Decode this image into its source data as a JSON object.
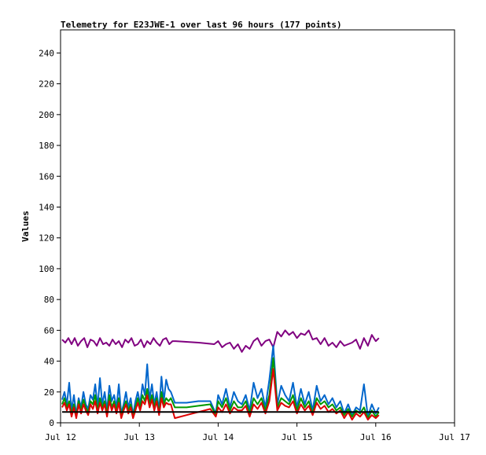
{
  "chart_data": {
    "type": "line",
    "title": "Telemetry for E23JWE-1 over last 96 hours (177 points)",
    "xlabel": "",
    "ylabel": "Values",
    "ylim": [
      0,
      255
    ],
    "yticks": [
      0,
      20,
      40,
      60,
      80,
      100,
      120,
      140,
      160,
      180,
      200,
      220,
      240
    ],
    "xlim": [
      0,
      5
    ],
    "xticks": [
      {
        "x": 0,
        "label": "Jul 12"
      },
      {
        "x": 1,
        "label": "Jul 13"
      },
      {
        "x": 2,
        "label": "Jul 14"
      },
      {
        "x": 3,
        "label": "Jul 15"
      },
      {
        "x": 4,
        "label": "Jul 16"
      },
      {
        "x": 5,
        "label": "Jul 17"
      }
    ],
    "grid": false,
    "legend": "none",
    "x_units": "days since Jul 12 00:00",
    "series": [
      {
        "color": "#800080",
        "x": [
          0.02,
          0.06,
          0.1,
          0.14,
          0.18,
          0.22,
          0.26,
          0.3,
          0.34,
          0.38,
          0.42,
          0.46,
          0.5,
          0.54,
          0.58,
          0.62,
          0.66,
          0.7,
          0.74,
          0.78,
          0.82,
          0.86,
          0.9,
          0.94,
          0.98,
          1.02,
          1.06,
          1.1,
          1.14,
          1.18,
          1.22,
          1.26,
          1.3,
          1.34,
          1.38,
          1.42,
          1.46,
          1.75,
          1.95,
          2.0,
          2.05,
          2.1,
          2.15,
          2.2,
          2.25,
          2.3,
          2.35,
          2.4,
          2.45,
          2.5,
          2.55,
          2.6,
          2.65,
          2.7,
          2.75,
          2.8,
          2.85,
          2.9,
          2.95,
          3.0,
          3.05,
          3.1,
          3.15,
          3.2,
          3.25,
          3.3,
          3.35,
          3.4,
          3.45,
          3.5,
          3.55,
          3.6,
          3.65,
          3.7,
          3.75,
          3.8,
          3.85,
          3.9,
          3.95,
          4.0,
          4.04
        ],
        "values": [
          54,
          52,
          55,
          51,
          55,
          50,
          53,
          55,
          49,
          54,
          53,
          50,
          55,
          51,
          52,
          50,
          54,
          51,
          53,
          49,
          54,
          52,
          55,
          50,
          51,
          54,
          49,
          53,
          51,
          55,
          52,
          50,
          54,
          55,
          51,
          53,
          53,
          52,
          51,
          53,
          49,
          51,
          52,
          48,
          51,
          46,
          50,
          48,
          53,
          55,
          50,
          53,
          54,
          49,
          59,
          56,
          60,
          57,
          59,
          55,
          58,
          57,
          60,
          54,
          55,
          51,
          55,
          50,
          52,
          49,
          53,
          50,
          51,
          52,
          54,
          48,
          55,
          50,
          57,
          53,
          55
        ]
      },
      {
        "color": "#0066cc",
        "x": [
          0.02,
          0.05,
          0.08,
          0.11,
          0.14,
          0.17,
          0.2,
          0.23,
          0.26,
          0.29,
          0.32,
          0.35,
          0.38,
          0.41,
          0.44,
          0.47,
          0.5,
          0.53,
          0.56,
          0.59,
          0.62,
          0.65,
          0.68,
          0.71,
          0.74,
          0.77,
          0.8,
          0.83,
          0.86,
          0.89,
          0.92,
          0.95,
          0.98,
          1.01,
          1.04,
          1.07,
          1.1,
          1.13,
          1.16,
          1.19,
          1.22,
          1.25,
          1.28,
          1.31,
          1.34,
          1.37,
          1.4,
          1.45,
          1.6,
          1.75,
          1.9,
          1.97,
          2.0,
          2.05,
          2.1,
          2.15,
          2.2,
          2.25,
          2.3,
          2.35,
          2.4,
          2.45,
          2.5,
          2.55,
          2.6,
          2.65,
          2.7,
          2.75,
          2.8,
          2.85,
          2.9,
          2.95,
          3.0,
          3.05,
          3.1,
          3.15,
          3.2,
          3.25,
          3.3,
          3.35,
          3.4,
          3.45,
          3.5,
          3.55,
          3.6,
          3.65,
          3.7,
          3.75,
          3.8,
          3.85,
          3.9,
          3.95,
          4.0,
          4.04
        ],
        "values": [
          15,
          20,
          12,
          26,
          8,
          18,
          5,
          16,
          10,
          20,
          12,
          9,
          18,
          15,
          25,
          10,
          29,
          12,
          20,
          8,
          24,
          14,
          18,
          10,
          25,
          6,
          12,
          20,
          10,
          16,
          5,
          14,
          20,
          12,
          25,
          18,
          38,
          15,
          25,
          12,
          20,
          8,
          30,
          14,
          28,
          22,
          20,
          13,
          13,
          14,
          14,
          6,
          18,
          12,
          22,
          10,
          20,
          14,
          12,
          18,
          8,
          26,
          16,
          22,
          10,
          28,
          50,
          12,
          24,
          18,
          14,
          26,
          10,
          22,
          12,
          20,
          8,
          24,
          14,
          18,
          12,
          16,
          10,
          14,
          6,
          12,
          5,
          10,
          8,
          25,
          4,
          12,
          6,
          10
        ]
      },
      {
        "color": "#009900",
        "x": [
          0.02,
          0.05,
          0.08,
          0.11,
          0.14,
          0.17,
          0.2,
          0.23,
          0.26,
          0.29,
          0.32,
          0.35,
          0.38,
          0.41,
          0.44,
          0.47,
          0.5,
          0.53,
          0.56,
          0.59,
          0.62,
          0.65,
          0.68,
          0.71,
          0.74,
          0.77,
          0.8,
          0.83,
          0.86,
          0.89,
          0.92,
          0.95,
          0.98,
          1.01,
          1.04,
          1.07,
          1.1,
          1.13,
          1.16,
          1.19,
          1.22,
          1.25,
          1.28,
          1.31,
          1.34,
          1.37,
          1.4,
          1.45,
          1.6,
          1.75,
          1.9,
          1.97,
          2.0,
          2.05,
          2.1,
          2.15,
          2.2,
          2.25,
          2.3,
          2.35,
          2.4,
          2.45,
          2.5,
          2.55,
          2.6,
          2.65,
          2.7,
          2.75,
          2.8,
          2.85,
          2.9,
          2.95,
          3.0,
          3.05,
          3.1,
          3.15,
          3.2,
          3.25,
          3.3,
          3.35,
          3.4,
          3.45,
          3.5,
          3.55,
          3.6,
          3.65,
          3.7,
          3.75,
          3.8,
          3.85,
          3.9,
          3.95,
          4.0,
          4.04
        ],
        "values": [
          12,
          16,
          10,
          14,
          6,
          12,
          4,
          14,
          8,
          15,
          10,
          7,
          14,
          12,
          18,
          8,
          16,
          10,
          14,
          6,
          18,
          10,
          14,
          8,
          16,
          4,
          10,
          14,
          8,
          12,
          4,
          10,
          16,
          10,
          18,
          14,
          22,
          12,
          18,
          10,
          16,
          6,
          20,
          12,
          16,
          14,
          16,
          10,
          10,
          11,
          12,
          5,
          14,
          10,
          16,
          8,
          14,
          10,
          10,
          14,
          6,
          16,
          12,
          16,
          8,
          18,
          42,
          10,
          16,
          14,
          12,
          18,
          8,
          16,
          10,
          14,
          6,
          16,
          12,
          14,
          10,
          12,
          8,
          10,
          5,
          9,
          4,
          8,
          6,
          10,
          3,
          8,
          4,
          7
        ]
      },
      {
        "color": "#dd0000",
        "x": [
          0.02,
          0.05,
          0.08,
          0.11,
          0.14,
          0.17,
          0.2,
          0.23,
          0.26,
          0.29,
          0.32,
          0.35,
          0.38,
          0.41,
          0.44,
          0.47,
          0.5,
          0.53,
          0.56,
          0.59,
          0.62,
          0.65,
          0.68,
          0.71,
          0.74,
          0.77,
          0.8,
          0.83,
          0.86,
          0.89,
          0.92,
          0.95,
          0.98,
          1.01,
          1.04,
          1.07,
          1.1,
          1.13,
          1.16,
          1.19,
          1.22,
          1.25,
          1.28,
          1.31,
          1.34,
          1.37,
          1.4,
          1.45,
          1.6,
          1.75,
          1.9,
          1.97,
          2.0,
          2.05,
          2.1,
          2.15,
          2.2,
          2.25,
          2.3,
          2.35,
          2.4,
          2.45,
          2.5,
          2.55,
          2.6,
          2.65,
          2.7,
          2.75,
          2.8,
          2.85,
          2.9,
          2.95,
          3.0,
          3.05,
          3.1,
          3.15,
          3.2,
          3.25,
          3.3,
          3.35,
          3.4,
          3.45,
          3.5,
          3.55,
          3.6,
          3.65,
          3.7,
          3.75,
          3.8,
          3.85,
          3.9,
          3.95,
          4.0,
          4.04
        ],
        "values": [
          10,
          13,
          8,
          12,
          4,
          10,
          3,
          12,
          6,
          12,
          8,
          5,
          12,
          9,
          14,
          6,
          13,
          8,
          12,
          4,
          14,
          8,
          12,
          6,
          13,
          3,
          8,
          12,
          6,
          10,
          3,
          8,
          13,
          8,
          14,
          12,
          18,
          10,
          15,
          8,
          14,
          5,
          16,
          10,
          13,
          12,
          12,
          3,
          5,
          7,
          9,
          4,
          10,
          7,
          12,
          6,
          10,
          8,
          8,
          11,
          4,
          12,
          9,
          13,
          6,
          14,
          35,
          8,
          13,
          11,
          10,
          14,
          6,
          12,
          8,
          11,
          5,
          13,
          9,
          11,
          7,
          9,
          6,
          8,
          3,
          7,
          2,
          6,
          4,
          7,
          2,
          5,
          3,
          5
        ]
      },
      {
        "color": "#000000",
        "x": [
          0.02,
          1.0,
          2.0,
          3.0,
          4.04
        ],
        "values": [
          7,
          7,
          7,
          7,
          7
        ]
      }
    ]
  }
}
